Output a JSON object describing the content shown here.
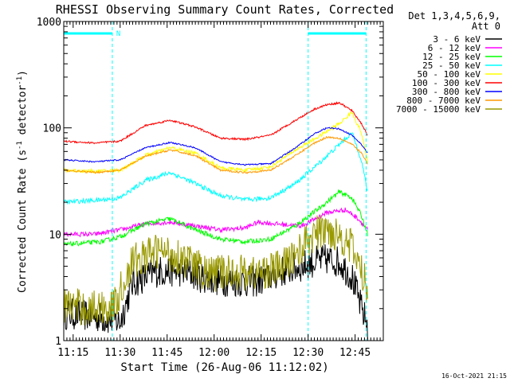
{
  "chart_data": {
    "type": "line",
    "title": "RHESSI Observing Summary Count Rates, Corrected",
    "xlabel": "Start Time (26-Aug-06 11:12:02)",
    "ylabel_main": "Corrected Count Rate (s",
    "ylabel_sup1": "-1",
    "ylabel_mid": " detector",
    "ylabel_sup2": "-1",
    "ylabel_end": ")",
    "y_scale": "log",
    "ylim": [
      1,
      1000
    ],
    "xlim_minutes": [
      0,
      102
    ],
    "x_ticks": [
      {
        "t": 3,
        "label": "11:15"
      },
      {
        "t": 18,
        "label": "11:30"
      },
      {
        "t": 33,
        "label": "11:45"
      },
      {
        "t": 48,
        "label": "12:00"
      },
      {
        "t": 63,
        "label": "12:15"
      },
      {
        "t": 78,
        "label": "12:30"
      },
      {
        "t": 93,
        "label": "12:45"
      }
    ],
    "y_ticks": [
      {
        "v": 1,
        "label": "1"
      },
      {
        "v": 10,
        "label": "10"
      },
      {
        "v": 100,
        "label": "100"
      },
      {
        "v": 1000,
        "label": "1000"
      }
    ],
    "legend_header": [
      "Det 1,3,4,5,6,9,",
      "Att 0"
    ],
    "legend_placement": "right",
    "timestamp": "16-Oct-2021 21:15",
    "night_flag_label": "N",
    "night_intervals_minutes": [
      [
        0,
        15.5
      ],
      [
        78,
        96.5
      ]
    ],
    "series": [
      {
        "name": "3 - 6 keV",
        "color": "#000000",
        "noise": 0.35,
        "x": [
          0,
          10,
          18,
          22,
          30,
          38,
          46,
          54,
          62,
          70,
          76,
          80,
          84,
          88,
          92,
          95,
          97
        ],
        "y": [
          1.8,
          1.7,
          1.5,
          3.5,
          4.5,
          4.5,
          3.8,
          3.6,
          3.6,
          4.5,
          5.0,
          5.5,
          5.8,
          5.5,
          4.0,
          2.0,
          1.4
        ]
      },
      {
        "name": "6 - 12 keV",
        "color": "#ff00ff",
        "noise": 0.05,
        "x": [
          0,
          10,
          18,
          26,
          34,
          42,
          50,
          58,
          62,
          68,
          76,
          84,
          90,
          94,
          97
        ],
        "y": [
          10,
          10,
          11,
          12.5,
          13,
          12,
          11,
          11.5,
          13,
          12.5,
          12,
          16,
          17,
          14,
          11
        ]
      },
      {
        "name": "12 - 25 keV",
        "color": "#00ff00",
        "noise": 0.05,
        "x": [
          0,
          12,
          18,
          26,
          34,
          42,
          50,
          58,
          66,
          74,
          82,
          88,
          92,
          95,
          97
        ],
        "y": [
          8,
          8.5,
          9.5,
          12.5,
          14,
          11,
          9,
          8.5,
          9,
          12,
          18,
          25,
          22,
          15,
          10
        ]
      },
      {
        "name": "25 - 50 keV",
        "color": "#00ffff",
        "noise": 0.05,
        "x": [
          0,
          12,
          18,
          26,
          34,
          42,
          50,
          58,
          66,
          74,
          82,
          88,
          92,
          95,
          97
        ],
        "y": [
          20,
          21,
          22,
          32,
          38,
          30,
          23,
          21,
          22,
          30,
          48,
          70,
          90,
          50,
          25
        ]
      },
      {
        "name": "50 - 100 keV",
        "color": "#ffff00",
        "noise": 0.04,
        "x": [
          0,
          10,
          18,
          26,
          34,
          42,
          50,
          58,
          66,
          74,
          82,
          88,
          92,
          95,
          97
        ],
        "y": [
          40,
          39,
          40,
          55,
          65,
          58,
          42,
          40,
          43,
          62,
          85,
          110,
          140,
          90,
          48
        ]
      },
      {
        "name": "100 - 300 keV",
        "color": "#ff0000",
        "noise": 0.02,
        "x": [
          0,
          10,
          18,
          26,
          34,
          42,
          50,
          58,
          66,
          74,
          80,
          84,
          88,
          92,
          95,
          97
        ],
        "y": [
          75,
          72,
          75,
          105,
          118,
          102,
          80,
          78,
          85,
          118,
          150,
          165,
          172,
          145,
          110,
          85
        ]
      },
      {
        "name": "300 - 800 keV",
        "color": "#0000ff",
        "noise": 0.015,
        "x": [
          0,
          10,
          18,
          26,
          34,
          42,
          50,
          58,
          66,
          74,
          80,
          84,
          88,
          92,
          95,
          97
        ],
        "y": [
          50,
          48,
          50,
          65,
          73,
          65,
          48,
          45,
          46,
          65,
          88,
          100,
          98,
          85,
          70,
          58
        ]
      },
      {
        "name": "800 - 7000 keV",
        "color": "#ff9900",
        "noise": 0.02,
        "x": [
          0,
          10,
          18,
          26,
          34,
          42,
          50,
          58,
          66,
          74,
          80,
          84,
          88,
          92,
          95,
          97
        ],
        "y": [
          40,
          38,
          40,
          54,
          62,
          55,
          40,
          38,
          40,
          55,
          72,
          82,
          80,
          70,
          58,
          46
        ]
      },
      {
        "name": "7000 - 15000 keV",
        "color": "#999900",
        "noise": 0.4,
        "x": [
          0,
          8,
          16,
          22,
          30,
          38,
          46,
          54,
          62,
          70,
          76,
          80,
          84,
          88,
          92,
          95,
          97
        ],
        "y": [
          2.2,
          2.0,
          2.1,
          5.5,
          7.0,
          6.0,
          4.2,
          4.5,
          4.3,
          5.0,
          7.5,
          10,
          11,
          10,
          7.5,
          4.5,
          3.0
        ]
      }
    ]
  }
}
